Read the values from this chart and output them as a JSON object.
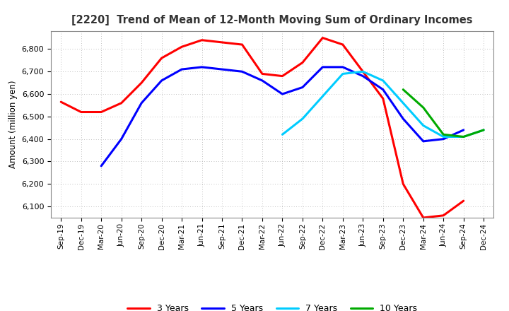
{
  "title": "[2220]  Trend of Mean of 12-Month Moving Sum of Ordinary Incomes",
  "ylabel": "Amount (million yen)",
  "background_color": "#ffffff",
  "grid_color": "#b0b0b0",
  "ylim": [
    6050,
    6880
  ],
  "yticks": [
    6100,
    6200,
    6300,
    6400,
    6500,
    6600,
    6700,
    6800
  ],
  "x_labels": [
    "Sep-19",
    "Dec-19",
    "Mar-20",
    "Jun-20",
    "Sep-20",
    "Dec-20",
    "Mar-21",
    "Jun-21",
    "Sep-21",
    "Dec-21",
    "Mar-22",
    "Jun-22",
    "Sep-22",
    "Dec-22",
    "Mar-23",
    "Jun-23",
    "Sep-23",
    "Dec-23",
    "Mar-24",
    "Jun-24",
    "Sep-24",
    "Dec-24"
  ],
  "series": {
    "3 Years": {
      "color": "#ff0000",
      "linewidth": 2.2,
      "data": [
        6565,
        6520,
        6520,
        6560,
        6650,
        6760,
        6810,
        6840,
        6830,
        6820,
        6690,
        6680,
        6740,
        6850,
        6820,
        6700,
        6580,
        6200,
        6050,
        6060,
        6125,
        null
      ]
    },
    "5 Years": {
      "color": "#0000ff",
      "linewidth": 2.2,
      "data": [
        null,
        null,
        6280,
        6400,
        6560,
        6660,
        6710,
        6720,
        6710,
        6700,
        6660,
        6600,
        6630,
        6720,
        6720,
        6680,
        6620,
        6490,
        6390,
        6400,
        6440,
        null
      ]
    },
    "7 Years": {
      "color": "#00ccff",
      "linewidth": 2.2,
      "data": [
        null,
        null,
        null,
        null,
        null,
        null,
        null,
        null,
        null,
        null,
        null,
        6420,
        6490,
        6590,
        6690,
        6700,
        6660,
        6560,
        6460,
        6410,
        6410,
        6440
      ]
    },
    "10 Years": {
      "color": "#00aa00",
      "linewidth": 2.2,
      "data": [
        null,
        null,
        null,
        null,
        null,
        null,
        null,
        null,
        null,
        null,
        null,
        null,
        null,
        null,
        null,
        null,
        null,
        6620,
        6540,
        6420,
        6410,
        6440
      ]
    }
  },
  "legend_entries": [
    "3 Years",
    "5 Years",
    "7 Years",
    "10 Years"
  ]
}
